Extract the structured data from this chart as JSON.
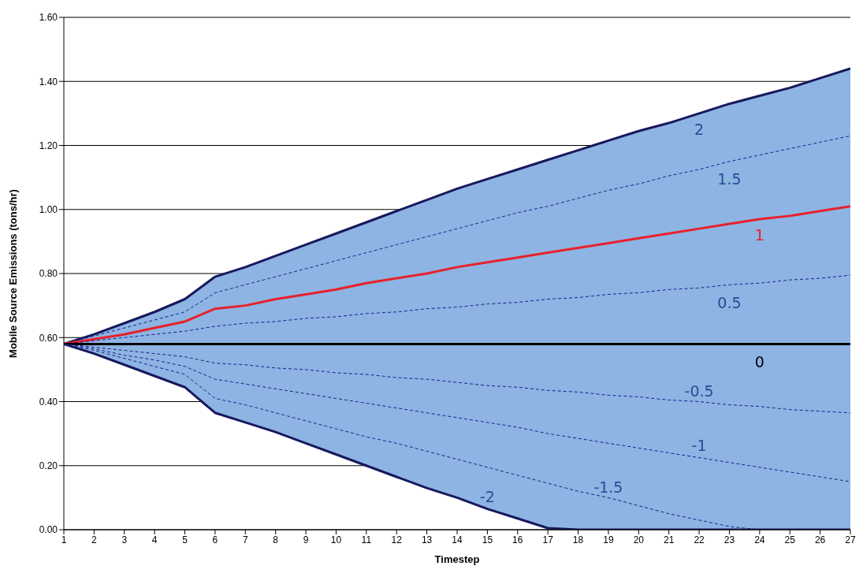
{
  "chart_data": {
    "type": "line",
    "xlabel": "Timestep",
    "ylabel": "Mobile Source Emissions (tons/hr)",
    "x": [
      1,
      2,
      3,
      4,
      5,
      6,
      7,
      8,
      9,
      10,
      11,
      12,
      13,
      14,
      15,
      16,
      17,
      18,
      19,
      20,
      21,
      22,
      23,
      24,
      25,
      26,
      27
    ],
    "xlim": [
      1,
      27
    ],
    "xticks": [
      1,
      2,
      3,
      4,
      5,
      6,
      7,
      8,
      9,
      10,
      11,
      12,
      13,
      14,
      15,
      16,
      17,
      18,
      19,
      20,
      21,
      22,
      23,
      24,
      25,
      26,
      27
    ],
    "ylim": [
      0,
      1.6
    ],
    "yticks": [
      {
        "value": 0,
        "label": "0.00"
      },
      {
        "value": 0.2,
        "label": "0.20"
      },
      {
        "value": 0.4,
        "label": "0.40"
      },
      {
        "value": 0.6,
        "label": "0.60"
      },
      {
        "value": 0.8,
        "label": "0.80"
      },
      {
        "value": 1,
        "label": "1.00"
      },
      {
        "value": 1.2,
        "label": "1.20"
      },
      {
        "value": 1.4,
        "label": "1.40"
      },
      {
        "value": 1.6,
        "label": "1.60"
      }
    ],
    "grid": "y",
    "legend": false,
    "marker": "none",
    "series": [
      {
        "name": "2",
        "color": "#17185e",
        "line_style": "solid",
        "values": [
          0.58,
          0.61,
          0.645,
          0.68,
          0.72,
          0.79,
          0.82,
          0.855,
          0.89,
          0.925,
          0.96,
          0.995,
          1.03,
          1.065,
          1.095,
          1.125,
          1.155,
          1.185,
          1.215,
          1.245,
          1.27,
          1.3,
          1.33,
          1.355,
          1.38,
          1.41,
          1.44
        ]
      },
      {
        "name": "1.5",
        "color": "#1f1f8f",
        "line_style": "dashed",
        "values": [
          0.58,
          0.605,
          0.63,
          0.655,
          0.68,
          0.74,
          0.765,
          0.79,
          0.815,
          0.84,
          0.865,
          0.89,
          0.915,
          0.94,
          0.965,
          0.99,
          1.01,
          1.035,
          1.06,
          1.08,
          1.105,
          1.125,
          1.15,
          1.17,
          1.19,
          1.21,
          1.23
        ]
      },
      {
        "name": "1",
        "color": "#e8202a",
        "line_style": "solid",
        "values": [
          0.58,
          0.595,
          0.61,
          0.63,
          0.65,
          0.69,
          0.7,
          0.72,
          0.735,
          0.75,
          0.77,
          0.785,
          0.8,
          0.82,
          0.835,
          0.85,
          0.865,
          0.88,
          0.895,
          0.91,
          0.925,
          0.94,
          0.955,
          0.97,
          0.98,
          0.995,
          1.01
        ]
      },
      {
        "name": "0.5",
        "color": "#1f1f8f",
        "line_style": "dashed",
        "values": [
          0.58,
          0.59,
          0.6,
          0.61,
          0.62,
          0.635,
          0.645,
          0.65,
          0.66,
          0.665,
          0.675,
          0.68,
          0.69,
          0.695,
          0.705,
          0.71,
          0.72,
          0.725,
          0.735,
          0.74,
          0.75,
          0.755,
          0.765,
          0.77,
          0.78,
          0.785,
          0.795
        ]
      },
      {
        "name": "0",
        "color": "#000000",
        "line_style": "solid",
        "values": [
          0.58,
          0.58,
          0.58,
          0.58,
          0.58,
          0.58,
          0.58,
          0.58,
          0.58,
          0.58,
          0.58,
          0.58,
          0.58,
          0.58,
          0.58,
          0.58,
          0.58,
          0.58,
          0.58,
          0.58,
          0.58,
          0.58,
          0.58,
          0.58,
          0.58,
          0.58,
          0.58
        ],
        "upper": [
          0.58,
          0.61,
          0.645,
          0.68,
          0.72,
          0.79,
          0.82,
          0.855,
          0.89,
          0.925,
          0.96,
          0.995,
          1.03,
          1.065,
          1.095,
          1.125,
          1.155,
          1.185,
          1.215,
          1.245,
          1.27,
          1.3,
          1.33,
          1.355,
          1.38,
          1.41,
          1.44
        ],
        "lower": [
          0.58,
          0.55,
          0.515,
          0.48,
          0.445,
          0.365,
          0.335,
          0.305,
          0.27,
          0.235,
          0.2,
          0.165,
          0.13,
          0.1,
          0.065,
          0.035,
          0.005,
          0,
          0,
          0,
          0,
          0,
          0,
          0,
          0,
          0,
          0
        ]
      },
      {
        "name": "-0.5",
        "color": "#1f1f8f",
        "line_style": "dashed",
        "values": [
          0.58,
          0.57,
          0.56,
          0.55,
          0.54,
          0.52,
          0.515,
          0.505,
          0.5,
          0.49,
          0.485,
          0.475,
          0.47,
          0.46,
          0.45,
          0.445,
          0.435,
          0.43,
          0.42,
          0.415,
          0.405,
          0.4,
          0.39,
          0.385,
          0.375,
          0.37,
          0.365
        ]
      },
      {
        "name": "-1",
        "color": "#1f1f8f",
        "line_style": "dashed",
        "values": [
          0.58,
          0.565,
          0.545,
          0.53,
          0.51,
          0.47,
          0.455,
          0.44,
          0.425,
          0.41,
          0.395,
          0.38,
          0.365,
          0.35,
          0.335,
          0.32,
          0.3,
          0.285,
          0.27,
          0.255,
          0.24,
          0.225,
          0.21,
          0.195,
          0.18,
          0.165,
          0.15
        ]
      },
      {
        "name": "-1.5",
        "color": "#1f1f8f",
        "line_style": "dashed",
        "values": [
          0.58,
          0.56,
          0.535,
          0.51,
          0.485,
          0.41,
          0.39,
          0.365,
          0.34,
          0.315,
          0.29,
          0.27,
          0.245,
          0.22,
          0.195,
          0.17,
          0.145,
          0.12,
          0.1,
          0.075,
          0.05,
          0.03,
          0.01,
          0,
          0,
          0,
          0
        ]
      },
      {
        "name": "-2",
        "color": "#17185e",
        "line_style": "solid",
        "values": [
          0.58,
          0.55,
          0.515,
          0.48,
          0.445,
          0.365,
          0.335,
          0.305,
          0.27,
          0.235,
          0.2,
          0.165,
          0.13,
          0.1,
          0.065,
          0.035,
          0.005,
          0,
          0,
          0,
          0,
          0,
          0,
          0,
          0,
          0,
          0
        ]
      }
    ]
  }
}
